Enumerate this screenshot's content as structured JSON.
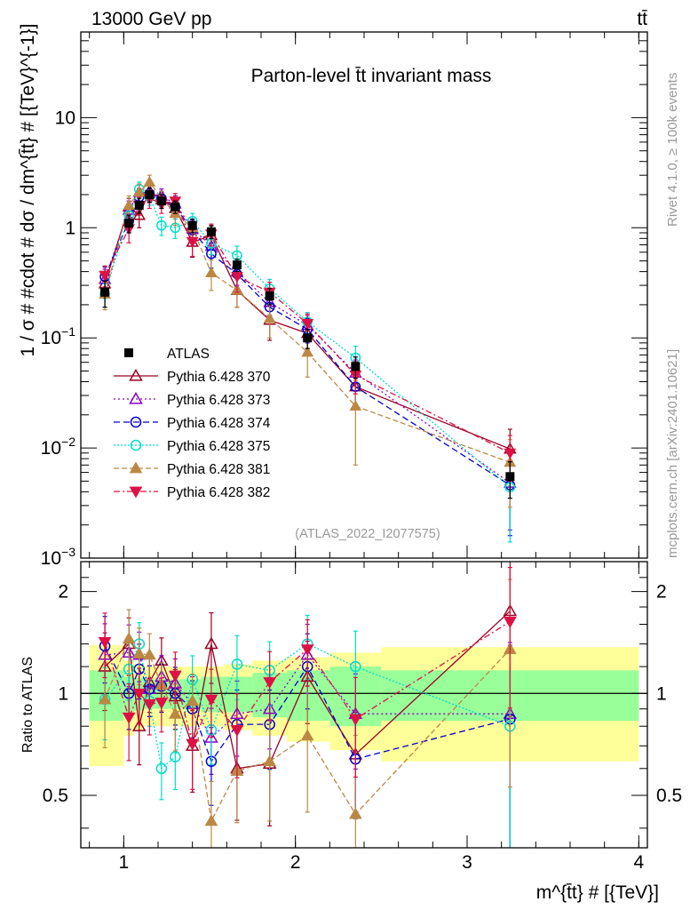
{
  "header": {
    "left": "13000 GeV pp",
    "right": "tt̄"
  },
  "side_notes": {
    "rivet": "Rivet 4.1.0, ≥ 100k events",
    "mcplots": "mcplots.cern.ch [arXiv:2401.10621]"
  },
  "analysis_tag": "(ATLAS_2022_I2077575)",
  "colors": {
    "band_inner": "#99ff99",
    "band_outer": "#ffff99",
    "ratio_line": "#000000"
  },
  "chart_data": [
    {
      "id": "main",
      "type": "scatter",
      "title": "Parton-level t̄t invariant mass",
      "ylabel": "1 / σ # #cdot # dσ / dm^{t̄t} # [{TeV}^{-1}]",
      "yscale": "log",
      "ylim": [
        0.001,
        60
      ],
      "xlim": [
        0.75,
        4.05
      ],
      "yticks": [
        {
          "value": 0.001,
          "label": "10^-3"
        },
        {
          "value": 0.01,
          "label": "10^-2"
        },
        {
          "value": 0.1,
          "label": "10^-1"
        },
        {
          "value": 1,
          "label": "1"
        },
        {
          "value": 10,
          "label": "10"
        }
      ],
      "x": [
        0.89,
        1.03,
        1.09,
        1.15,
        1.22,
        1.3,
        1.4,
        1.51,
        1.66,
        1.85,
        2.07,
        2.35,
        3.25
      ],
      "data_points": {
        "name": "ATLAS",
        "values": [
          0.26,
          1.1,
          1.6,
          2.0,
          1.75,
          1.55,
          1.05,
          0.92,
          0.46,
          0.24,
          0.1,
          0.055,
          0.0055
        ],
        "err": [
          0.07,
          0.2,
          0.25,
          0.3,
          0.25,
          0.2,
          0.15,
          0.12,
          0.06,
          0.04,
          0.02,
          0.012,
          0.002
        ]
      },
      "series": [
        {
          "name": "Pythia 6.428 370",
          "color": "#990022",
          "marker": "triangle-up-open",
          "dash": "",
          "values": [
            0.31,
            1.55,
            1.3,
            2.15,
            1.8,
            1.5,
            0.74,
            0.85,
            0.27,
            0.145,
            0.11,
            0.036,
            0.0098
          ],
          "err": [
            0.08,
            0.3,
            0.3,
            0.4,
            0.3,
            0.3,
            0.2,
            0.2,
            0.08,
            0.05,
            0.03,
            0.012,
            0.005
          ]
        },
        {
          "name": "Pythia 6.428 373",
          "color": "#8800cc",
          "marker": "triangle-up-open",
          "dash": "2,3",
          "values": [
            0.34,
            1.45,
            2.1,
            2.05,
            1.95,
            1.65,
            0.98,
            0.68,
            0.4,
            0.21,
            0.13,
            0.048,
            0.0048
          ],
          "err": [
            0.08,
            0.3,
            0.35,
            0.35,
            0.3,
            0.3,
            0.2,
            0.15,
            0.1,
            0.05,
            0.03,
            0.015,
            0.003
          ]
        },
        {
          "name": "Pythia 6.428 374",
          "color": "#0000cc",
          "marker": "circle-open",
          "dash": "7,4",
          "values": [
            0.36,
            1.15,
            1.9,
            2.05,
            1.85,
            1.55,
            0.95,
            0.58,
            0.38,
            0.19,
            0.12,
            0.036,
            0.0046
          ],
          "err": [
            0.08,
            0.25,
            0.35,
            0.35,
            0.3,
            0.3,
            0.2,
            0.15,
            0.1,
            0.05,
            0.03,
            0.012,
            0.003
          ]
        },
        {
          "name": "Pythia 6.428 375",
          "color": "#00ddcc",
          "marker": "circle-open",
          "dash": "2,2",
          "values": [
            0.25,
            1.3,
            2.25,
            1.9,
            1.05,
            1.0,
            1.15,
            0.72,
            0.56,
            0.28,
            0.14,
            0.066,
            0.0044
          ],
          "err": [
            0.06,
            0.25,
            0.35,
            0.3,
            0.2,
            0.2,
            0.2,
            0.15,
            0.12,
            0.06,
            0.03,
            0.018,
            0.003
          ]
        },
        {
          "name": "Pythia 6.428 381",
          "color": "#bb8844",
          "marker": "triangle-up-filled",
          "dash": "6,3",
          "values": [
            0.25,
            1.6,
            2.1,
            2.6,
            1.85,
            1.35,
            1.0,
            0.39,
            0.27,
            0.15,
            0.074,
            0.024,
            0.0074
          ],
          "err": [
            0.07,
            0.35,
            0.4,
            0.4,
            0.3,
            0.3,
            0.2,
            0.12,
            0.08,
            0.05,
            0.03,
            0.017,
            0.0045
          ]
        },
        {
          "name": "Pythia 6.428 382",
          "color": "#dd1144",
          "marker": "triangle-down-filled",
          "dash": "7,3,2,3",
          "values": [
            0.37,
            0.98,
            1.6,
            1.85,
            1.65,
            1.75,
            0.75,
            0.88,
            0.36,
            0.26,
            0.135,
            0.046,
            0.009
          ],
          "err": [
            0.08,
            0.25,
            0.3,
            0.35,
            0.3,
            0.3,
            0.2,
            0.2,
            0.1,
            0.06,
            0.03,
            0.015,
            0.004
          ]
        }
      ]
    },
    {
      "id": "ratio",
      "type": "scatter",
      "ylabel": "Ratio to ATLAS",
      "xlabel": "m^{t̄t} # [{TeV}]",
      "yscale": "log",
      "ylim": [
        0.35,
        2.45
      ],
      "xlim": [
        0.75,
        4.05
      ],
      "yticks": [
        {
          "value": 0.5,
          "label": "0.5"
        },
        {
          "value": 1,
          "label": "1"
        },
        {
          "value": 2,
          "label": "2"
        }
      ],
      "xticks": [
        {
          "value": 1,
          "label": "1"
        },
        {
          "value": 2,
          "label": "2"
        },
        {
          "value": 3,
          "label": "3"
        },
        {
          "value": 4,
          "label": "4"
        }
      ],
      "bands": {
        "edges": [
          0.8,
          1.0,
          1.06,
          1.12,
          1.18,
          1.26,
          1.34,
          1.45,
          1.58,
          1.75,
          1.95,
          2.2,
          2.5,
          4.0
        ],
        "inner": [
          0.17,
          0.12,
          0.11,
          0.1,
          0.1,
          0.1,
          0.1,
          0.12,
          0.12,
          0.15,
          0.17,
          0.2,
          0.17
        ],
        "outer": [
          0.39,
          0.25,
          0.22,
          0.2,
          0.2,
          0.2,
          0.2,
          0.2,
          0.22,
          0.25,
          0.28,
          0.32,
          0.37
        ]
      },
      "series_ratios": [
        {
          "name": "Pythia 6.428 370",
          "values": [
            1.2,
            1.4,
            0.8,
            1.08,
            1.25,
            0.98,
            0.7,
            1.4,
            0.6,
            0.62,
            1.12,
            0.66,
            1.75
          ]
        },
        {
          "name": "Pythia 6.428 373",
          "values": [
            1.3,
            1.32,
            1.3,
            1.03,
            1.12,
            1.07,
            0.93,
            0.74,
            0.87,
            0.9,
            1.3,
            0.87,
            0.87
          ]
        },
        {
          "name": "Pythia 6.428 374",
          "values": [
            1.38,
            1.0,
            1.18,
            1.03,
            1.05,
            1.0,
            0.9,
            0.63,
            0.81,
            0.81,
            1.2,
            0.64,
            0.84
          ]
        },
        {
          "name": "Pythia 6.428 375",
          "values": [
            0.96,
            1.18,
            1.4,
            0.95,
            0.6,
            0.65,
            1.1,
            0.78,
            1.22,
            1.17,
            1.4,
            1.2,
            0.8
          ]
        },
        {
          "name": "Pythia 6.428 381",
          "values": [
            0.96,
            1.45,
            1.31,
            1.3,
            1.06,
            0.87,
            0.95,
            0.42,
            0.59,
            0.63,
            0.75,
            0.44,
            1.35
          ]
        },
        {
          "name": "Pythia 6.428 382",
          "values": [
            1.42,
            0.85,
            1.0,
            0.93,
            0.94,
            1.13,
            0.71,
            0.96,
            0.78,
            1.08,
            1.35,
            0.84,
            1.63
          ]
        }
      ]
    }
  ]
}
